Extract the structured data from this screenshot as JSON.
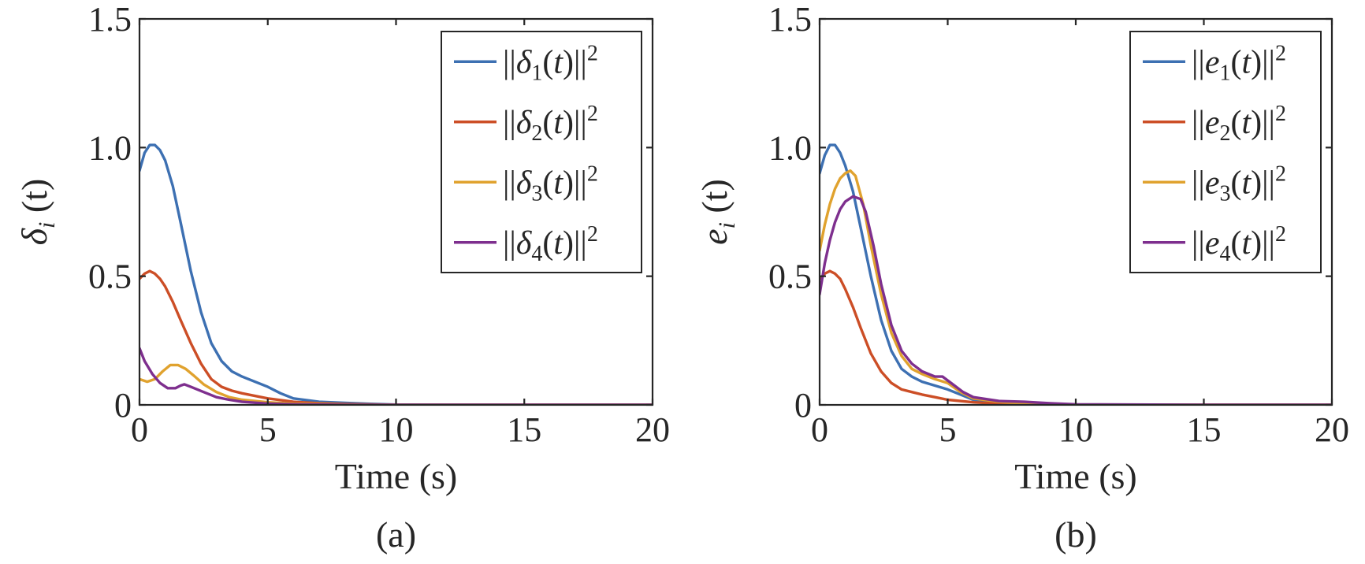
{
  "chart_data": [
    {
      "type": "line",
      "caption": "(a)",
      "xlabel": "Time (s)",
      "ylabel": {
        "sym": "δ",
        "sub": "i",
        "rest": " (t)"
      },
      "xlim": [
        0,
        20
      ],
      "ylim": [
        0,
        1.5
      ],
      "xticks": [
        0,
        5,
        10,
        15,
        20
      ],
      "xtick_labels": [
        "0",
        "5",
        "10",
        "15",
        "20"
      ],
      "yticks": [
        0,
        0.5,
        1.0,
        1.5
      ],
      "ytick_labels": [
        "0",
        "0.5",
        "1.0",
        "1.5"
      ],
      "grid": false,
      "legend_position": "top-right",
      "series": [
        {
          "name": "||δ1(t)||2",
          "pre": "||",
          "sym": "δ",
          "sub": "1",
          "mid": "(t)||",
          "sup": "2",
          "color": "#3d70b2",
          "x": [
            0,
            0.2,
            0.4,
            0.6,
            0.8,
            1.0,
            1.3,
            1.6,
            2.0,
            2.4,
            2.8,
            3.2,
            3.6,
            4.0,
            4.5,
            5.0,
            5.5,
            6.0,
            7.0,
            8.0,
            9.0,
            10.0,
            12.0,
            15.0,
            20.0
          ],
          "y": [
            0.91,
            0.98,
            1.01,
            1.01,
            0.99,
            0.95,
            0.85,
            0.71,
            0.52,
            0.36,
            0.24,
            0.17,
            0.13,
            0.11,
            0.09,
            0.07,
            0.045,
            0.025,
            0.012,
            0.008,
            0.004,
            0.001,
            0.0,
            0.0,
            0.0
          ]
        },
        {
          "name": "||δ2(t)||2",
          "pre": "||",
          "sym": "δ",
          "sub": "2",
          "mid": "(t)||",
          "sup": "2",
          "color": "#cc4e26",
          "x": [
            0,
            0.2,
            0.4,
            0.6,
            0.8,
            1.0,
            1.3,
            1.6,
            2.0,
            2.4,
            2.8,
            3.2,
            3.6,
            4.0,
            4.5,
            5.0,
            6.0,
            7.0,
            8.0,
            10.0,
            15.0,
            20.0
          ],
          "y": [
            0.49,
            0.51,
            0.52,
            0.51,
            0.49,
            0.46,
            0.4,
            0.33,
            0.24,
            0.16,
            0.1,
            0.07,
            0.055,
            0.045,
            0.035,
            0.025,
            0.012,
            0.006,
            0.003,
            0.0,
            0.0,
            0.0
          ]
        },
        {
          "name": "||δ3(t)||2",
          "pre": "||",
          "sym": "δ",
          "sub": "3",
          "mid": "(t)||",
          "sup": "2",
          "color": "#e0a22e",
          "x": [
            0,
            0.3,
            0.6,
            0.9,
            1.2,
            1.5,
            1.8,
            2.1,
            2.5,
            3.0,
            3.5,
            4.0,
            5.0,
            6.0,
            8.0,
            10.0,
            20.0
          ],
          "y": [
            0.1,
            0.09,
            0.1,
            0.13,
            0.155,
            0.155,
            0.14,
            0.115,
            0.08,
            0.05,
            0.03,
            0.02,
            0.01,
            0.005,
            0.001,
            0.0,
            0.0
          ]
        },
        {
          "name": "||δ4(t)||2",
          "pre": "||",
          "sym": "δ",
          "sub": "4",
          "mid": "(t)||",
          "sup": "2",
          "color": "#7e2f8e",
          "x": [
            0,
            0.2,
            0.5,
            0.8,
            1.1,
            1.4,
            1.6,
            1.75,
            2.0,
            2.5,
            3.0,
            3.5,
            4.0,
            5.0,
            6.0,
            8.0,
            10.0,
            20.0
          ],
          "y": [
            0.22,
            0.17,
            0.12,
            0.085,
            0.065,
            0.065,
            0.075,
            0.08,
            0.07,
            0.05,
            0.03,
            0.02,
            0.012,
            0.005,
            0.002,
            0.0,
            0.0,
            0.0
          ]
        }
      ]
    },
    {
      "type": "line",
      "caption": "(b)",
      "xlabel": "Time (s)",
      "ylabel": {
        "sym": "e",
        "sub": "i",
        "rest": " (t)"
      },
      "xlim": [
        0,
        20
      ],
      "ylim": [
        0,
        1.5
      ],
      "xticks": [
        0,
        5,
        10,
        15,
        20
      ],
      "xtick_labels": [
        "0",
        "5",
        "10",
        "15",
        "20"
      ],
      "yticks": [
        0,
        0.5,
        1.0,
        1.5
      ],
      "ytick_labels": [
        "0",
        "0.5",
        "1.0",
        "1.5"
      ],
      "grid": false,
      "legend_position": "top-right",
      "series": [
        {
          "name": "||e1(t)||2",
          "pre": "||",
          "sym": "e",
          "sub": "1",
          "mid": "(t)||",
          "sup": "2",
          "color": "#3d70b2",
          "x": [
            0,
            0.2,
            0.4,
            0.6,
            0.8,
            1.0,
            1.3,
            1.6,
            2.0,
            2.4,
            2.8,
            3.2,
            3.6,
            4.0,
            4.5,
            5.0,
            5.5,
            6.0,
            7.0,
            8.0,
            10.0,
            15.0,
            20.0
          ],
          "y": [
            0.9,
            0.97,
            1.01,
            1.01,
            0.98,
            0.93,
            0.83,
            0.69,
            0.5,
            0.33,
            0.21,
            0.14,
            0.11,
            0.09,
            0.075,
            0.06,
            0.04,
            0.02,
            0.01,
            0.005,
            0.001,
            0.0,
            0.0
          ]
        },
        {
          "name": "||e2(t)||2",
          "pre": "||",
          "sym": "e",
          "sub": "2",
          "mid": "(t)||",
          "sup": "2",
          "color": "#cc4e26",
          "x": [
            0,
            0.2,
            0.4,
            0.6,
            0.8,
            1.0,
            1.3,
            1.6,
            2.0,
            2.4,
            2.8,
            3.2,
            3.6,
            4.0,
            4.5,
            5.0,
            6.0,
            7.0,
            8.0,
            10.0,
            15.0,
            20.0
          ],
          "y": [
            0.49,
            0.51,
            0.52,
            0.51,
            0.49,
            0.45,
            0.38,
            0.3,
            0.2,
            0.13,
            0.085,
            0.06,
            0.05,
            0.04,
            0.03,
            0.02,
            0.01,
            0.005,
            0.002,
            0.0,
            0.0,
            0.0
          ]
        },
        {
          "name": "||e3(t)||2",
          "pre": "||",
          "sym": "e",
          "sub": "3",
          "mid": "(t)||",
          "sup": "2",
          "color": "#e0a22e",
          "x": [
            0,
            0.2,
            0.4,
            0.6,
            0.8,
            1.0,
            1.2,
            1.4,
            1.7,
            2.0,
            2.4,
            2.8,
            3.2,
            3.6,
            4.0,
            4.5,
            5.0,
            5.5,
            6.0,
            7.0,
            8.0,
            10.0,
            15.0,
            20.0
          ],
          "y": [
            0.6,
            0.7,
            0.78,
            0.84,
            0.88,
            0.9,
            0.91,
            0.89,
            0.78,
            0.62,
            0.43,
            0.28,
            0.19,
            0.14,
            0.12,
            0.1,
            0.085,
            0.05,
            0.025,
            0.012,
            0.006,
            0.001,
            0.0,
            0.0
          ]
        },
        {
          "name": "||e4(t)||2",
          "pre": "||",
          "sym": "e",
          "sub": "4",
          "mid": "(t)||",
          "sup": "2",
          "color": "#7e2f8e",
          "x": [
            0,
            0.2,
            0.4,
            0.6,
            0.8,
            1.0,
            1.3,
            1.6,
            1.8,
            2.1,
            2.4,
            2.8,
            3.2,
            3.6,
            4.0,
            4.5,
            4.8,
            5.2,
            5.6,
            6.0,
            7.0,
            8.0,
            9.0,
            10.0,
            15.0,
            20.0
          ],
          "y": [
            0.43,
            0.55,
            0.64,
            0.71,
            0.76,
            0.79,
            0.81,
            0.8,
            0.75,
            0.62,
            0.47,
            0.31,
            0.21,
            0.16,
            0.13,
            0.11,
            0.11,
            0.08,
            0.05,
            0.03,
            0.015,
            0.012,
            0.006,
            0.002,
            0.0,
            0.0
          ]
        }
      ]
    }
  ]
}
